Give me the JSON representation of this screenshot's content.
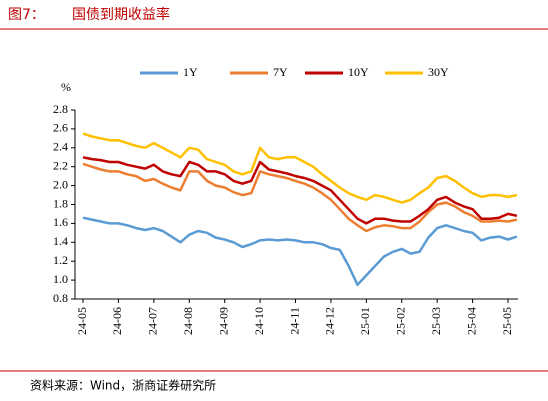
{
  "chart_data": {
    "type": "line",
    "figure_label": "图7：",
    "title": "国债到期收益率",
    "y_unit": "%",
    "source": "资料来源：Wind，浙商证券研究所",
    "legend": "top",
    "grid": false,
    "categories": [
      "24-05",
      null,
      null,
      null,
      "24-06",
      null,
      null,
      null,
      "24-07",
      null,
      null,
      null,
      "24-08",
      null,
      null,
      null,
      "24-09",
      null,
      null,
      null,
      "24-10",
      null,
      null,
      null,
      "24-11",
      null,
      null,
      null,
      "24-12",
      null,
      null,
      null,
      "25-01",
      null,
      null,
      null,
      "25-02",
      null,
      null,
      null,
      "25-03",
      null,
      null,
      null,
      "25-04",
      null,
      null,
      null,
      "25-05",
      null
    ],
    "ylim": [
      0.8,
      2.8
    ],
    "yticks": [
      0.8,
      {
        "value": 1,
        "label": "1.0"
      },
      1.2,
      1.4,
      1.6,
      1.8,
      {
        "value": 2,
        "label": "2.0"
      },
      2.2,
      2.4,
      2.6,
      2.8
    ],
    "series": [
      {
        "name": "1Y",
        "color": "#5b9bd5",
        "values": [
          1.66,
          1.64,
          1.62,
          1.6,
          1.6,
          1.58,
          1.55,
          1.53,
          1.55,
          1.52,
          1.46,
          1.4,
          1.48,
          1.52,
          1.5,
          1.45,
          1.43,
          1.4,
          1.35,
          1.38,
          1.42,
          1.43,
          1.42,
          1.43,
          1.42,
          1.4,
          1.4,
          1.38,
          1.34,
          1.32,
          1.15,
          0.95,
          1.05,
          1.15,
          1.25,
          1.3,
          1.33,
          1.28,
          1.3,
          1.45,
          1.55,
          1.58,
          1.55,
          1.52,
          1.5,
          1.42,
          1.45,
          1.46,
          1.43,
          1.46
        ]
      },
      {
        "name": "7Y",
        "color": "#ed7d31",
        "values": [
          2.23,
          2.2,
          2.17,
          2.15,
          2.15,
          2.12,
          2.1,
          2.05,
          2.07,
          2.02,
          1.98,
          1.95,
          2.15,
          2.15,
          2.05,
          2.0,
          1.98,
          1.93,
          1.9,
          1.92,
          2.15,
          2.12,
          2.1,
          2.08,
          2.05,
          2.02,
          1.98,
          1.92,
          1.85,
          1.75,
          1.65,
          1.58,
          1.52,
          1.56,
          1.58,
          1.57,
          1.55,
          1.55,
          1.62,
          1.72,
          1.8,
          1.82,
          1.78,
          1.72,
          1.68,
          1.62,
          1.62,
          1.63,
          1.62,
          1.64
        ]
      },
      {
        "name": "10Y",
        "color": "#c00000",
        "values": [
          2.3,
          2.28,
          2.27,
          2.25,
          2.25,
          2.22,
          2.2,
          2.18,
          2.22,
          2.15,
          2.12,
          2.1,
          2.25,
          2.22,
          2.15,
          2.15,
          2.12,
          2.05,
          2.02,
          2.05,
          2.25,
          2.17,
          2.15,
          2.13,
          2.1,
          2.08,
          2.05,
          2.0,
          1.95,
          1.85,
          1.75,
          1.65,
          1.6,
          1.65,
          1.65,
          1.63,
          1.62,
          1.62,
          1.68,
          1.75,
          1.85,
          1.88,
          1.82,
          1.78,
          1.75,
          1.65,
          1.65,
          1.66,
          1.7,
          1.68
        ]
      },
      {
        "name": "30Y",
        "color": "#ffc000",
        "values": [
          2.55,
          2.52,
          2.5,
          2.48,
          2.48,
          2.45,
          2.42,
          2.4,
          2.45,
          2.4,
          2.35,
          2.3,
          2.4,
          2.38,
          2.28,
          2.25,
          2.22,
          2.15,
          2.12,
          2.15,
          2.4,
          2.3,
          2.28,
          2.3,
          2.3,
          2.25,
          2.2,
          2.12,
          2.05,
          1.98,
          1.92,
          1.88,
          1.85,
          1.9,
          1.88,
          1.85,
          1.82,
          1.85,
          1.92,
          1.98,
          2.08,
          2.1,
          2.05,
          1.98,
          1.92,
          1.88,
          1.9,
          1.9,
          1.88,
          1.9
        ]
      }
    ]
  }
}
